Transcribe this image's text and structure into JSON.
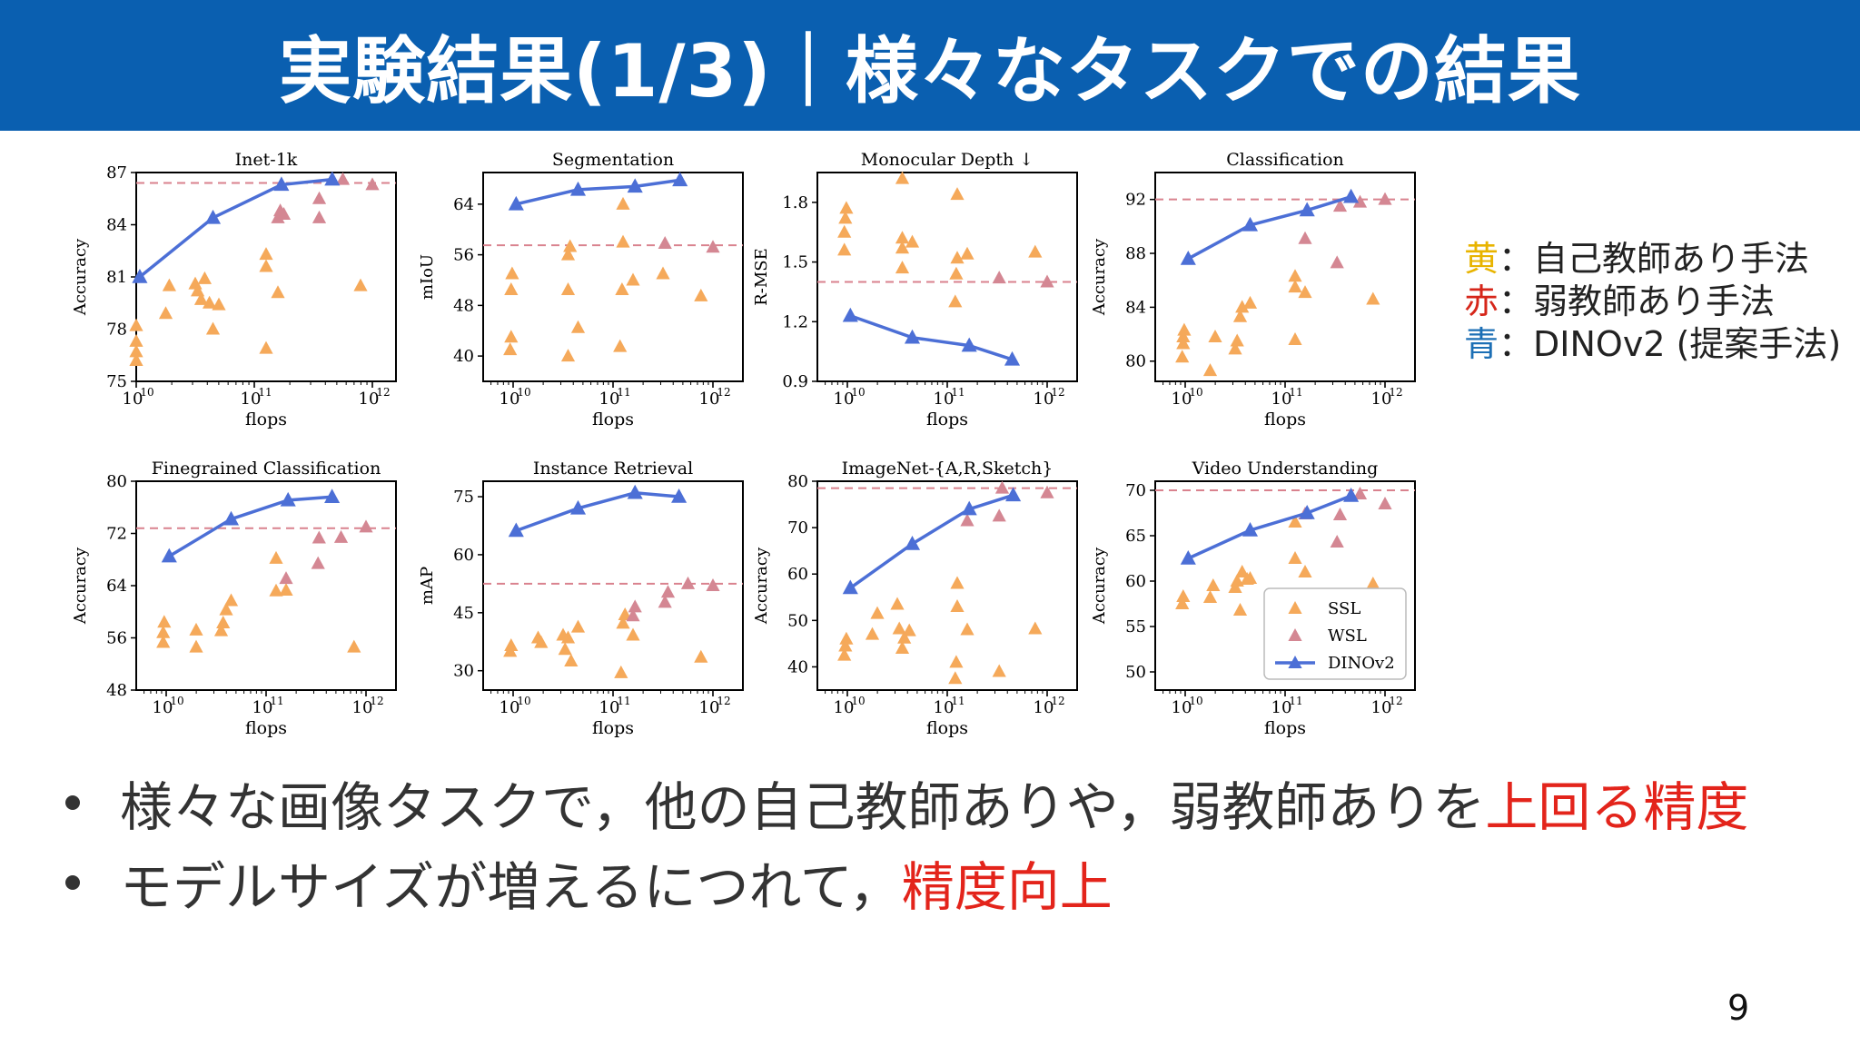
{
  "header": {
    "title": "実験結果(1/3)｜様々なタスクでの結果"
  },
  "legend": {
    "items": [
      {
        "key": "黄",
        "sep": "：",
        "text": "自己教師あり手法",
        "color": "#e8b400"
      },
      {
        "key": "赤",
        "sep": "：",
        "text": "弱教師あり手法",
        "color": "#d6261a"
      },
      {
        "key": "青",
        "sep": "：",
        "text": "DINOv2 (提案手法)",
        "color": "#1c6fb5"
      }
    ]
  },
  "bullets": [
    {
      "pre": "様々な画像タスクで，他の自己教師ありや，弱教師ありを",
      "hl": "上回る精度"
    },
    {
      "pre": "モデルサイズが増えるにつれて，",
      "hl": "精度向上"
    }
  ],
  "page_number": "9",
  "colors": {
    "ssl": "#f5a95a",
    "wsl": "#d48793",
    "dino": "#4c6fd6",
    "ref": "#d9828e"
  },
  "chart_data": [
    {
      "type": "scatter",
      "title": "Inet-1k",
      "xlabel": "flops",
      "ylabel": "Accuracy",
      "xscale": "log",
      "xlim": [
        10,
        12.2
      ],
      "ylim": [
        75,
        87
      ],
      "yticks": [
        75,
        78,
        81,
        84,
        87
      ],
      "xticks": [
        10,
        11,
        12
      ],
      "ref_line": 86.4,
      "ssl": [
        [
          10,
          76.2
        ],
        [
          10,
          76.7
        ],
        [
          10,
          77.3
        ],
        [
          10,
          78.2
        ],
        [
          10.25,
          78.9
        ],
        [
          10.28,
          80.5
        ],
        [
          10.5,
          80.6
        ],
        [
          10.52,
          80.2
        ],
        [
          10.55,
          79.7
        ],
        [
          10.58,
          80.9
        ],
        [
          10.62,
          79.5
        ],
        [
          10.65,
          78.0
        ],
        [
          10.7,
          79.4
        ],
        [
          11.1,
          76.9
        ],
        [
          11.1,
          81.6
        ],
        [
          11.1,
          82.3
        ],
        [
          11.2,
          80.1
        ],
        [
          11.9,
          80.5
        ]
      ],
      "wsl": [
        [
          11.2,
          84.4
        ],
        [
          11.22,
          84.8
        ],
        [
          11.25,
          84.6
        ],
        [
          11.55,
          84.4
        ],
        [
          11.55,
          85.5
        ],
        [
          11.75,
          86.6
        ],
        [
          12,
          86.3
        ]
      ],
      "dino": [
        [
          10.03,
          81.0
        ],
        [
          10.65,
          84.4
        ],
        [
          11.23,
          86.3
        ],
        [
          11.66,
          86.6
        ]
      ]
    },
    {
      "type": "scatter",
      "title": "Segmentation",
      "xlabel": "flops",
      "ylabel": "mIoU",
      "xscale": "log",
      "xlim": [
        9.7,
        12.3
      ],
      "ylim": [
        36,
        69
      ],
      "yticks": [
        40,
        48,
        56,
        64
      ],
      "xticks": [
        10,
        11,
        12
      ],
      "ref_line": 57.5,
      "ssl": [
        [
          9.97,
          41
        ],
        [
          9.98,
          43
        ],
        [
          9.98,
          50.5
        ],
        [
          9.99,
          53
        ],
        [
          10.55,
          40
        ],
        [
          10.55,
          50.5
        ],
        [
          10.55,
          56
        ],
        [
          10.57,
          57.3
        ],
        [
          10.65,
          44.5
        ],
        [
          11.07,
          41.5
        ],
        [
          11.09,
          50.5
        ],
        [
          11.1,
          58
        ],
        [
          11.1,
          64
        ],
        [
          11.2,
          52
        ],
        [
          11.5,
          53
        ],
        [
          11.88,
          49.5
        ]
      ],
      "wsl": [
        [
          11.52,
          57.8
        ],
        [
          12,
          57.2
        ]
      ],
      "dino": [
        [
          10.03,
          64
        ],
        [
          10.65,
          66.3
        ],
        [
          11.22,
          66.8
        ],
        [
          11.67,
          67.8
        ]
      ]
    },
    {
      "type": "scatter",
      "title": "Monocular Depth ↓",
      "xlabel": "flops",
      "ylabel": "R-MSE",
      "xscale": "log",
      "xlim": [
        9.7,
        12.3
      ],
      "ylim": [
        0.9,
        1.95
      ],
      "yticks": [
        0.9,
        1.2,
        1.5,
        1.8
      ],
      "xticks": [
        10,
        11,
        12
      ],
      "ref_line": 1.4,
      "ssl": [
        [
          9.97,
          1.56
        ],
        [
          9.97,
          1.65
        ],
        [
          9.98,
          1.72
        ],
        [
          9.99,
          1.77
        ],
        [
          10.55,
          1.47
        ],
        [
          10.55,
          1.57
        ],
        [
          10.55,
          1.62
        ],
        [
          10.55,
          1.92
        ],
        [
          10.65,
          1.6
        ],
        [
          11.08,
          1.3
        ],
        [
          11.09,
          1.44
        ],
        [
          11.1,
          1.52
        ],
        [
          11.1,
          1.84
        ],
        [
          11.2,
          1.54
        ],
        [
          11.88,
          1.55
        ]
      ],
      "wsl": [
        [
          11.52,
          1.42
        ],
        [
          12,
          1.4
        ]
      ],
      "dino": [
        [
          10.03,
          1.23
        ],
        [
          10.65,
          1.12
        ],
        [
          11.22,
          1.08
        ],
        [
          11.65,
          1.01
        ]
      ]
    },
    {
      "type": "scatter",
      "title": "Classification",
      "xlabel": "flops",
      "ylabel": "Accuracy",
      "xscale": "log",
      "xlim": [
        9.7,
        12.3
      ],
      "ylim": [
        78.5,
        94
      ],
      "yticks": [
        80,
        84,
        88,
        92
      ],
      "xticks": [
        10,
        11,
        12
      ],
      "ref_line": 92,
      "ssl": [
        [
          9.97,
          80.3
        ],
        [
          9.98,
          81.3
        ],
        [
          9.98,
          81.8
        ],
        [
          9.99,
          82.3
        ],
        [
          10.25,
          79.3
        ],
        [
          10.3,
          81.8
        ],
        [
          10.5,
          80.9
        ],
        [
          10.52,
          81.5
        ],
        [
          10.55,
          83.3
        ],
        [
          10.57,
          84.0
        ],
        [
          10.65,
          84.3
        ],
        [
          11.1,
          81.6
        ],
        [
          11.1,
          85.5
        ],
        [
          11.1,
          86.3
        ],
        [
          11.2,
          85.1
        ],
        [
          11.88,
          84.6
        ]
      ],
      "wsl": [
        [
          11.2,
          89.1
        ],
        [
          11.52,
          87.3
        ],
        [
          11.55,
          91.5
        ],
        [
          11.75,
          91.8
        ],
        [
          12,
          92.0
        ]
      ],
      "dino": [
        [
          10.03,
          87.6
        ],
        [
          10.65,
          90.1
        ],
        [
          11.22,
          91.2
        ],
        [
          11.66,
          92.2
        ]
      ]
    },
    {
      "type": "scatter",
      "title": "Finegrained Classification",
      "xlabel": "flops",
      "ylabel": "Accuracy",
      "xscale": "log",
      "xlim": [
        9.7,
        12.3
      ],
      "ylim": [
        48,
        80
      ],
      "yticks": [
        48,
        56,
        64,
        72,
        80
      ],
      "xticks": [
        10,
        11,
        12
      ],
      "ref_line": 72.8,
      "ssl": [
        [
          9.97,
          55.3
        ],
        [
          9.97,
          56.8
        ],
        [
          9.98,
          58.4
        ],
        [
          10.3,
          54.6
        ],
        [
          10.3,
          57.2
        ],
        [
          10.55,
          57.1
        ],
        [
          10.57,
          58.3
        ],
        [
          10.6,
          60.3
        ],
        [
          10.65,
          61.7
        ],
        [
          11.1,
          63.2
        ],
        [
          11.1,
          68.2
        ],
        [
          11.2,
          63.3
        ],
        [
          11.88,
          54.6
        ]
      ],
      "wsl": [
        [
          11.2,
          65.1
        ],
        [
          11.52,
          67.4
        ],
        [
          11.53,
          71.3
        ],
        [
          11.75,
          71.4
        ],
        [
          12,
          73.0
        ]
      ],
      "dino": [
        [
          10.03,
          68.5
        ],
        [
          10.65,
          74.2
        ],
        [
          11.22,
          77.1
        ],
        [
          11.66,
          77.6
        ]
      ]
    },
    {
      "type": "scatter",
      "title": "Instance Retrieval",
      "xlabel": "flops",
      "ylabel": "mAP",
      "xscale": "log",
      "xlim": [
        9.7,
        12.3
      ],
      "ylim": [
        25,
        79
      ],
      "yticks": [
        30,
        45,
        60,
        75
      ],
      "xticks": [
        10,
        11,
        12
      ],
      "ref_line": 52.5,
      "ssl": [
        [
          9.97,
          35.0
        ],
        [
          9.98,
          36.5
        ],
        [
          10.25,
          38.5
        ],
        [
          10.28,
          37.3
        ],
        [
          10.5,
          39.2
        ],
        [
          10.52,
          35.5
        ],
        [
          10.55,
          38.5
        ],
        [
          10.58,
          32.5
        ],
        [
          10.65,
          41.3
        ],
        [
          11.08,
          29.5
        ],
        [
          11.1,
          42.3
        ],
        [
          11.12,
          44.5
        ],
        [
          11.2,
          39.2
        ],
        [
          11.88,
          33.5
        ]
      ],
      "wsl": [
        [
          11.2,
          44.2
        ],
        [
          11.22,
          46.5
        ],
        [
          11.52,
          47.7
        ],
        [
          11.55,
          50.3
        ],
        [
          11.75,
          52.5
        ],
        [
          12,
          52.0
        ]
      ],
      "dino": [
        [
          10.03,
          66.2
        ],
        [
          10.65,
          72.0
        ],
        [
          11.22,
          76.0
        ],
        [
          11.66,
          75.0
        ]
      ]
    },
    {
      "type": "scatter",
      "title": "ImageNet-{A,R,Sketch}",
      "xlabel": "flops",
      "ylabel": "Accuracy",
      "xscale": "log",
      "xlim": [
        9.7,
        12.3
      ],
      "ylim": [
        35,
        80
      ],
      "yticks": [
        40,
        50,
        60,
        70,
        80
      ],
      "xticks": [
        10,
        11,
        12
      ],
      "ref_line": 78.5,
      "ssl": [
        [
          9.97,
          42.5
        ],
        [
          9.98,
          44.5
        ],
        [
          9.99,
          46.0
        ],
        [
          10.25,
          47.0
        ],
        [
          10.3,
          51.5
        ],
        [
          10.5,
          53.5
        ],
        [
          10.52,
          48.2
        ],
        [
          10.55,
          44.0
        ],
        [
          10.57,
          46.2
        ],
        [
          10.62,
          47.8
        ],
        [
          11.08,
          37.5
        ],
        [
          11.09,
          41.0
        ],
        [
          11.1,
          53.0
        ],
        [
          11.1,
          58.0
        ],
        [
          11.2,
          48.0
        ],
        [
          11.52,
          39.0
        ],
        [
          11.88,
          48.2
        ]
      ],
      "wsl": [
        [
          11.2,
          71.5
        ],
        [
          11.52,
          72.5
        ],
        [
          11.55,
          78.5
        ],
        [
          12,
          77.5
        ]
      ],
      "dino": [
        [
          10.03,
          57.0
        ],
        [
          10.65,
          66.5
        ],
        [
          11.22,
          74.0
        ],
        [
          11.66,
          77.0
        ]
      ]
    },
    {
      "type": "scatter",
      "title": "Video Understanding",
      "xlabel": "flops",
      "ylabel": "Accuracy",
      "xscale": "log",
      "xlim": [
        9.7,
        12.3
      ],
      "ylim": [
        48,
        71
      ],
      "yticks": [
        50,
        55,
        60,
        65,
        70
      ],
      "xticks": [
        10,
        11,
        12
      ],
      "ref_line": 70,
      "ssl": [
        [
          9.97,
          57.5
        ],
        [
          9.98,
          58.3
        ],
        [
          10.25,
          58.2
        ],
        [
          10.28,
          59.5
        ],
        [
          10.5,
          59.3
        ],
        [
          10.52,
          60.0
        ],
        [
          10.55,
          56.8
        ],
        [
          10.57,
          61.0
        ],
        [
          10.62,
          60.2
        ],
        [
          10.65,
          60.3
        ],
        [
          11.1,
          62.5
        ],
        [
          11.1,
          66.5
        ],
        [
          11.2,
          61.0
        ],
        [
          11.88,
          59.7
        ]
      ],
      "wsl": [
        [
          11.2,
          67.4
        ],
        [
          11.52,
          64.3
        ],
        [
          11.55,
          67.3
        ],
        [
          11.75,
          69.6
        ],
        [
          12,
          68.5
        ]
      ],
      "dino": [
        [
          10.03,
          62.5
        ],
        [
          10.65,
          65.6
        ],
        [
          11.22,
          67.5
        ],
        [
          11.66,
          69.4
        ]
      ],
      "legend": {
        "position": "lower-right",
        "labels": [
          "SSL",
          "WSL",
          "DINOv2"
        ]
      }
    }
  ]
}
